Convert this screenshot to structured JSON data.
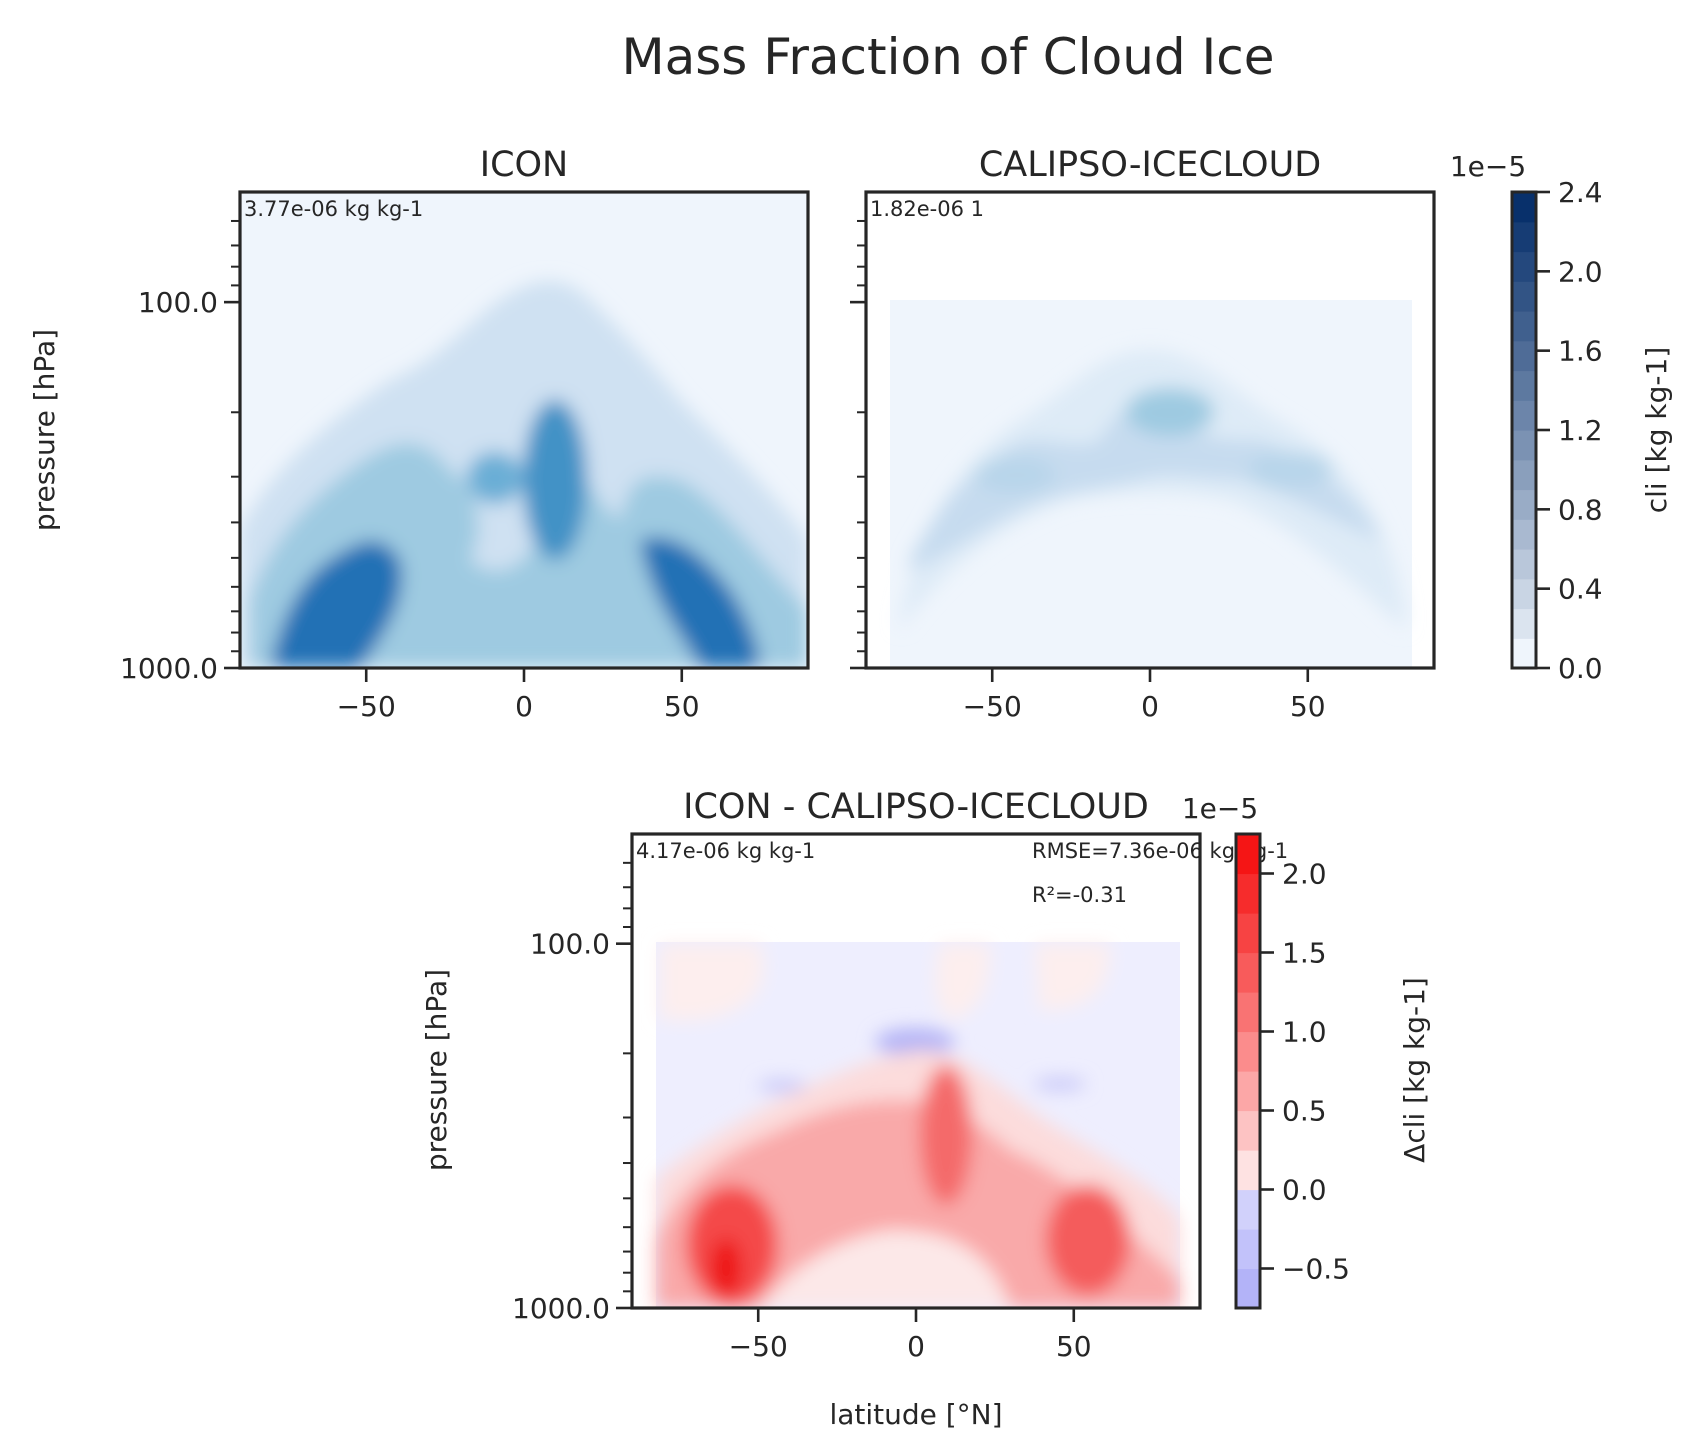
{
  "figure": {
    "title": "Mass Fraction of Cloud Ice"
  },
  "chart_data": [
    {
      "type": "heatmap",
      "panel": "top-left",
      "title": "ICON",
      "annotation": "3.77e-06 kg kg-1",
      "xlabel": "",
      "ylabel": "pressure [hPa]",
      "xlim": [
        -90,
        90
      ],
      "ylim": [
        1000,
        50
      ],
      "yscale": "log",
      "xticks": [
        -50,
        0,
        50
      ],
      "xtick_labels": [
        "−50",
        "0",
        "50"
      ],
      "yticks": [
        100,
        1000
      ],
      "ytick_labels": [
        "100.0",
        "1000.0"
      ],
      "colormap": "Blues",
      "features": [
        {
          "lat": -57,
          "p": 700,
          "value": 2.1e-05
        },
        {
          "lat": -45,
          "p": 520,
          "value": 1.4e-05
        },
        {
          "lat": -12,
          "p": 310,
          "value": 1e-05
        },
        {
          "lat": 8,
          "p": 300,
          "value": 2.3e-05
        },
        {
          "lat": 50,
          "p": 560,
          "value": 1.8e-05
        },
        {
          "lat": 62,
          "p": 720,
          "value": 1.2e-05
        }
      ]
    },
    {
      "type": "heatmap",
      "panel": "top-right",
      "title": "CALIPSO-ICECLOUD",
      "annotation": "1.82e-06 1",
      "xlabel": "",
      "ylabel": "",
      "xlim": [
        -90,
        90
      ],
      "ylim": [
        1000,
        50
      ],
      "yscale": "log",
      "xticks": [
        -50,
        0,
        50
      ],
      "xtick_labels": [
        "−50",
        "0",
        "50"
      ],
      "data_extent": {
        "lat": [
          -82,
          82
        ],
        "p": [
          100,
          1000
        ]
      },
      "colormap": "Blues",
      "features": [
        {
          "lat": 6,
          "p": 220,
          "value": 9e-06
        },
        {
          "lat": -45,
          "p": 340,
          "value": 6e-06
        },
        {
          "lat": -60,
          "p": 440,
          "value": 5e-06
        },
        {
          "lat": 45,
          "p": 320,
          "value": 5.5e-06
        }
      ],
      "colorbar": {
        "label": "cli [kg kg-1]",
        "exponent_label": "1e−5",
        "range": [
          0,
          2.4e-05
        ],
        "levels": 16,
        "ticks": [
          0.0,
          0.4,
          0.8,
          1.2,
          1.6,
          2.0,
          2.4
        ],
        "tick_labels": [
          "0.0",
          "0.4",
          "0.8",
          "1.2",
          "1.6",
          "2.0",
          "2.4"
        ]
      }
    },
    {
      "type": "heatmap",
      "panel": "bottom",
      "title": "ICON - CALIPSO-ICECLOUD",
      "annotation": "4.17e-06 kg kg-1",
      "rmse_label": "RMSE=7.36e-06 kg kg-1",
      "r2_label": "R²=-0.31",
      "xlabel": "latitude [°N]",
      "ylabel": "pressure [hPa]",
      "xlim": [
        -90,
        90
      ],
      "ylim": [
        1000,
        50
      ],
      "yscale": "log",
      "xticks": [
        -50,
        0,
        50
      ],
      "xtick_labels": [
        "−50",
        "0",
        "50"
      ],
      "yticks": [
        100,
        1000
      ],
      "ytick_labels": [
        "100.0",
        "1000.0"
      ],
      "data_extent": {
        "lat": [
          -82,
          82
        ],
        "p": [
          100,
          1000
        ]
      },
      "colormap": "bwr",
      "features": [
        {
          "lat": -57,
          "p": 800,
          "value": 2e-05
        },
        {
          "lat": 10,
          "p": 330,
          "value": 1.6e-05
        },
        {
          "lat": 58,
          "p": 700,
          "value": 1.4e-05
        },
        {
          "lat": 3,
          "p": 205,
          "value": -6e-06
        }
      ],
      "colorbar": {
        "label": "Δcli [kg kg-1]",
        "exponent_label": "1e−5",
        "range": [
          -7.5e-06,
          2.25e-05
        ],
        "levels": 12,
        "ticks": [
          -0.5,
          0.0,
          0.5,
          1.0,
          1.5,
          2.0
        ],
        "tick_labels": [
          "−0.5",
          "0.0",
          "0.5",
          "1.0",
          "1.5",
          "2.0"
        ]
      }
    }
  ]
}
